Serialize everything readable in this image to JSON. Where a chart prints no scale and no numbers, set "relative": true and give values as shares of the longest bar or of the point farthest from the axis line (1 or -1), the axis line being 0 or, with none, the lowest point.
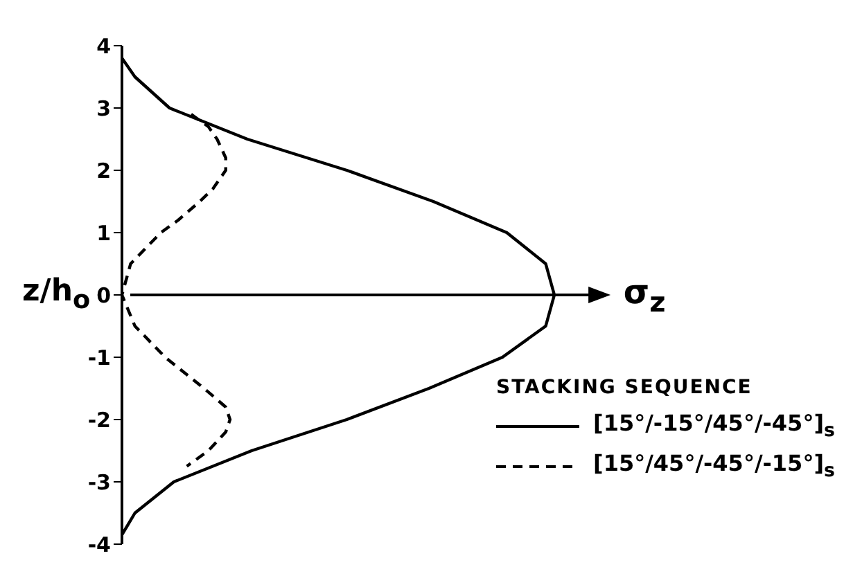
{
  "chart_data": {
    "type": "line",
    "orientation": "horizontal",
    "relative": true,
    "xlabel": "σ$_{z}$",
    "ylabel": "z/h$_{o}$",
    "legend_title": "STACKING SEQUENCE",
    "legend": "bottom right",
    "ylim": [
      -4,
      4
    ],
    "yticks": [
      -4,
      -3,
      -2,
      -1,
      0,
      1,
      2,
      3,
      4
    ],
    "series": [
      {
        "name": "[15°/-15°/45°/-45°]$_{s}$",
        "color": "#000000",
        "line_style": "solid",
        "values": [
          0,
          0.03,
          0.11,
          0.29,
          0.52,
          0.72,
          0.89,
          0.98,
          1,
          0.98,
          0.88,
          0.71,
          0.52,
          0.3,
          0.12,
          0.03,
          0
        ],
        "x": [
          3.8,
          3.5,
          3,
          2.5,
          2,
          1.5,
          1,
          0.5,
          0,
          -0.5,
          -1,
          -1.5,
          -2,
          -2.5,
          -3,
          -3.5,
          -3.85
        ]
      },
      {
        "name": "[15°/45°/-45°/-15°]$_{s}$",
        "color": "#000000",
        "line_style": "dashed",
        "values": [
          0.16,
          0.2,
          0.22,
          0.24,
          0.24,
          0.21,
          0.18,
          0.13,
          0.09,
          0.02,
          0,
          0.03,
          0.1,
          0.19,
          0.24,
          0.25,
          0.24,
          0.2,
          0.15
        ],
        "x": [
          2.9,
          2.7,
          2.5,
          2.2,
          2,
          1.7,
          1.5,
          1.2,
          1,
          0.5,
          0,
          -0.5,
          -1,
          -1.5,
          -1.8,
          -2,
          -2.2,
          -2.5,
          -2.75
        ]
      }
    ]
  }
}
